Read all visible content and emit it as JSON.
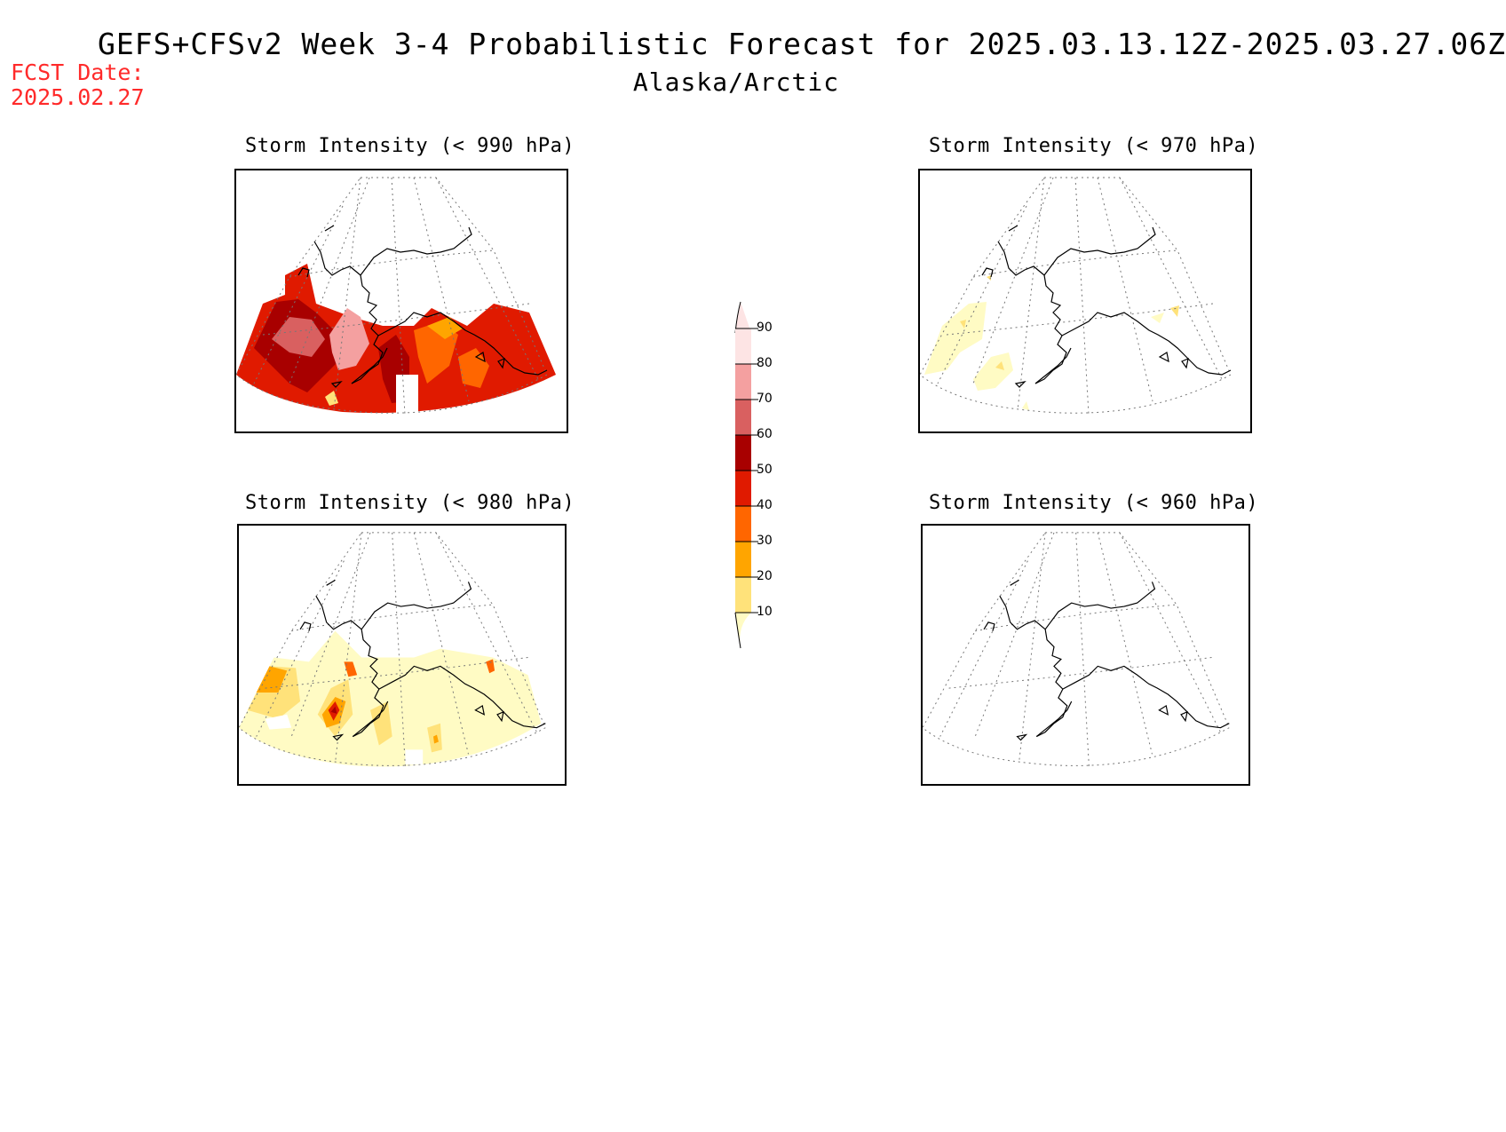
{
  "header": {
    "title": "GEFS+CFSv2 Week 3-4 Probabilistic Forecast for 2025.03.13.12Z-2025.03.27.06Z",
    "subtitle": "Alaska/Arctic",
    "fcst_label": "FCST Date:",
    "fcst_date": "2025.02.27"
  },
  "panels": [
    {
      "id": "p990",
      "title": "Storm Intensity (< 990 hPa)",
      "level": "high"
    },
    {
      "id": "p970",
      "title": "Storm Intensity (< 970 hPa)",
      "level": "low"
    },
    {
      "id": "p980",
      "title": "Storm Intensity (< 980 hPa)",
      "level": "medium"
    },
    {
      "id": "p960",
      "title": "Storm Intensity (< 960 hPa)",
      "level": "none"
    }
  ],
  "colorbar": {
    "levels": [
      "10",
      "20",
      "30",
      "40",
      "50",
      "60",
      "70",
      "80",
      "90"
    ],
    "colors": [
      "#fffbc4",
      "#ffe27a",
      "#ffa500",
      "#ff6600",
      "#e01a00",
      "#a80000",
      "#d96060",
      "#f4a0a0",
      "#fde4e4"
    ]
  }
}
